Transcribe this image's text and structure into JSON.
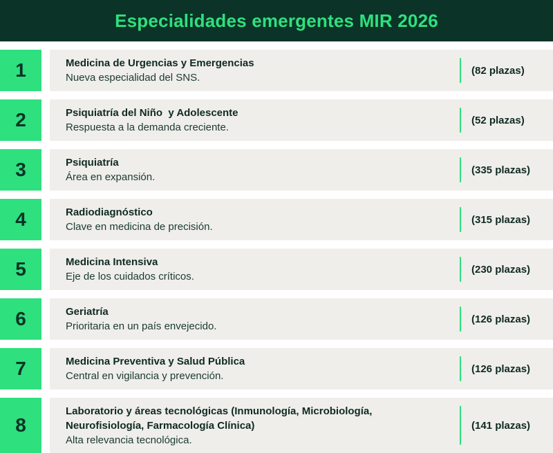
{
  "header": {
    "title": "Especialidades emergentes MIR 2026"
  },
  "items": [
    {
      "number": "1",
      "title": "Medicina de Urgencias y Emergencias",
      "description": "Nueva especialidad del SNS.",
      "plazas": "(82 plazas)"
    },
    {
      "number": "2",
      "title": "Psiquiatría del Niño  y Adolescente",
      "description": "Respuesta a la demanda creciente.",
      "plazas": "(52 plazas)"
    },
    {
      "number": "3",
      "title": "Psiquiatría",
      "description": "Área en expansión.",
      "plazas": "(335 plazas)"
    },
    {
      "number": "4",
      "title": "Radiodiagnóstico",
      "description": "Clave en medicina de precisión.",
      "plazas": "(315 plazas)"
    },
    {
      "number": "5",
      "title": "Medicina Intensiva",
      "description": "Eje de los cuidados críticos.",
      "plazas": "(230 plazas)"
    },
    {
      "number": "6",
      "title": "Geriatría",
      "description": "Prioritaria en un país envejecido.",
      "plazas": "(126 plazas)"
    },
    {
      "number": "7",
      "title": "Medicina Preventiva y Salud Pública",
      "description": "Central en vigilancia y prevención.",
      "plazas": "(126 plazas)"
    },
    {
      "number": "8",
      "title": "Laboratorio y áreas tecnológicas (Inmunología, Microbiología, Neurofisiología, Farmacología Clínica)",
      "description": "Alta relevancia tecnológica.",
      "plazas": "(141 plazas)"
    }
  ]
}
